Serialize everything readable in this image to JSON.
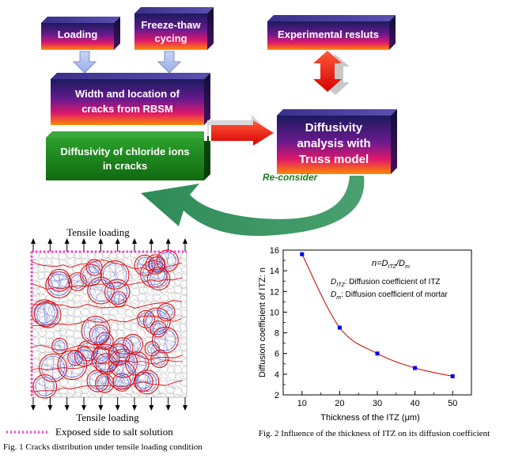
{
  "flow": {
    "loading": "Loading",
    "freeze_line1": "Freeze-thaw",
    "freeze_line2": "cycing",
    "experimental": "Experimental resluts",
    "width_line1": "Width and location of",
    "width_line2": "cracks from RBSM",
    "diffusivity_chloride_line1": "Diffusivity of chloride ions",
    "diffusivity_chloride_line2": "in cracks",
    "analysis_line1": "Diffusivity",
    "analysis_line2": "analysis with",
    "analysis_line3": "Truss model",
    "reconsider": "Re-consider"
  },
  "fig1": {
    "top_label": "Tensile loading",
    "bottom_label": "Tensile loading",
    "legend": "Exposed side to salt solution",
    "caption": "Fig. 1 Cracks distribution under tensile loading condition"
  },
  "chart_data": {
    "type": "line",
    "x": [
      10,
      20,
      30,
      40,
      50
    ],
    "values": [
      15.6,
      8.5,
      6.0,
      4.6,
      3.8
    ],
    "xlabel": "Thickness of the ITZ (μm)",
    "ylabel": "Diffusion coefficient of ITZ: n",
    "xlim": [
      5,
      55
    ],
    "ylim": [
      2,
      16
    ],
    "xticks": [
      10,
      20,
      30,
      40,
      50
    ],
    "yticks": [
      2,
      4,
      6,
      8,
      10,
      12,
      14,
      16
    ],
    "annotation_formula": "n=D_ITZ/D_m",
    "annotation_ditz": "Diffusion coefficient of ITZ",
    "annotation_dm": "Diffusion coefficient of mortar",
    "caption": "Fig. 2 Influence of the thickness of ITZ on its diffusion coefficient",
    "line_color": "#cc0000",
    "marker_color": "#0000ee"
  },
  "colors": {
    "navy": "#2a1a6e",
    "purple": "#7a1a9a",
    "red": "#ee1111",
    "orange": "#ff8800",
    "green": "#1e8a1e",
    "teal": "#2e8b57",
    "reconsider_text": "#1e7a1e",
    "exposed": "#ff33cc"
  }
}
